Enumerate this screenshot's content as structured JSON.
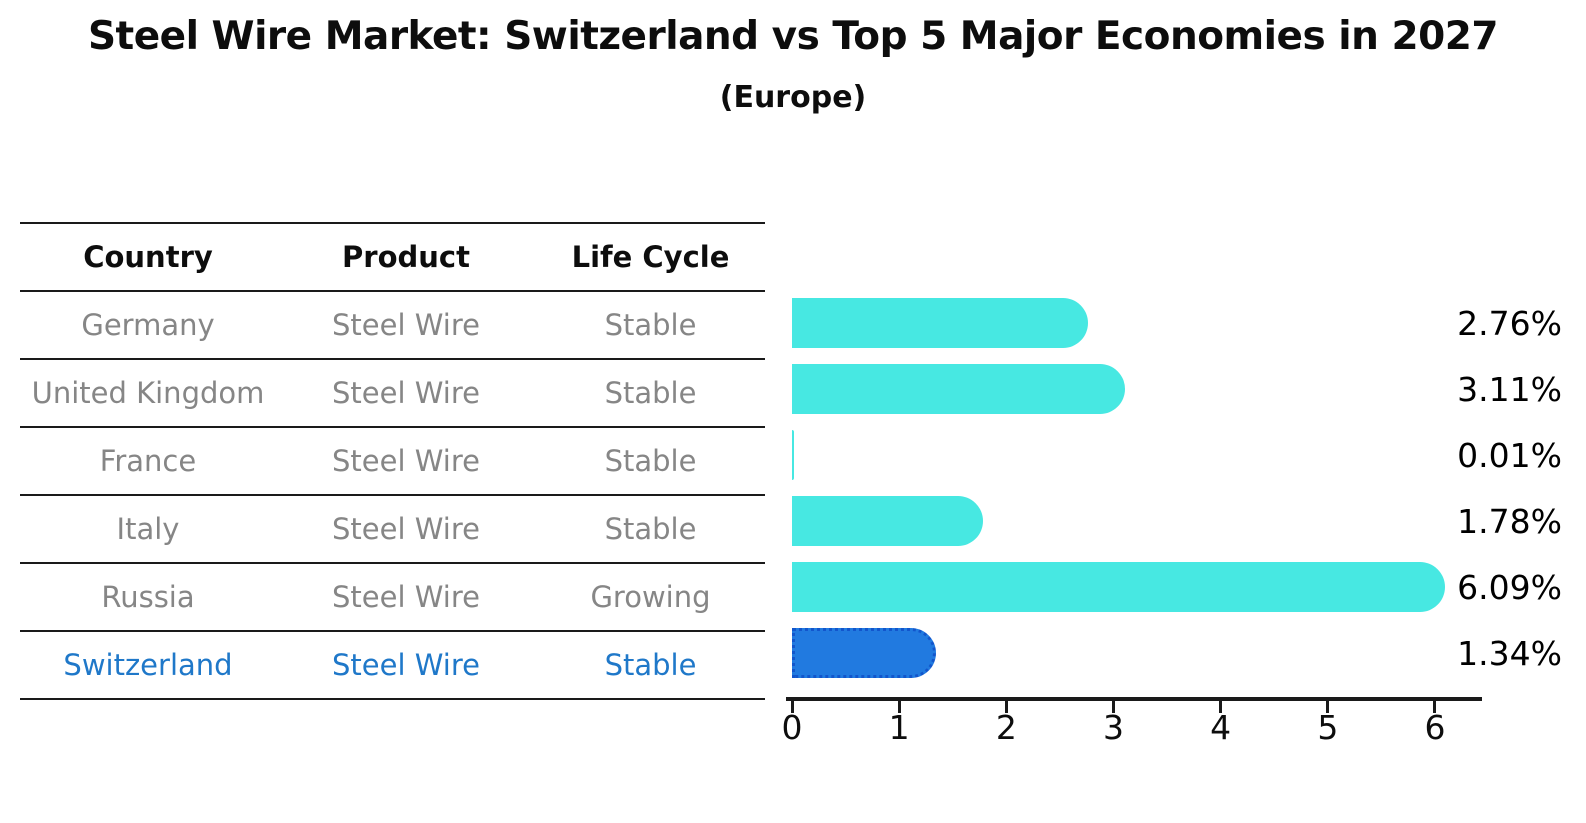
{
  "title": "Steel Wire Market: Switzerland vs Top 5 Major Economies in 2027",
  "subtitle": "(Europe)",
  "table": {
    "headers": [
      "Country",
      "Product",
      "Life Cycle"
    ],
    "rows": [
      {
        "country": "Germany",
        "product": "Steel Wire",
        "life_cycle": "Stable",
        "highlighted": false
      },
      {
        "country": "United Kingdom",
        "product": "Steel Wire",
        "life_cycle": "Stable",
        "highlighted": false
      },
      {
        "country": "France",
        "product": "Steel Wire",
        "life_cycle": "Stable",
        "highlighted": false
      },
      {
        "country": "Italy",
        "product": "Steel Wire",
        "life_cycle": "Stable",
        "highlighted": false
      },
      {
        "country": "Russia",
        "product": "Steel Wire",
        "life_cycle": "Growing",
        "highlighted": false
      },
      {
        "country": "Switzerland",
        "product": "Steel Wire",
        "life_cycle": "Stable",
        "highlighted": true
      }
    ]
  },
  "chart_data": {
    "type": "bar",
    "orientation": "horizontal",
    "title": "Steel Wire Market: Switzerland vs Top 5 Major Economies in 2027",
    "subtitle": "(Europe)",
    "categories": [
      "Germany",
      "United Kingdom",
      "France",
      "Italy",
      "Russia",
      "Switzerland"
    ],
    "values": [
      2.76,
      3.11,
      0.01,
      1.78,
      6.09,
      1.34
    ],
    "value_labels": [
      "2.76%",
      "3.11%",
      "0.01%",
      "1.78%",
      "6.09%",
      "1.34%"
    ],
    "x_ticks": [
      "0",
      "1",
      "2",
      "3",
      "4",
      "5",
      "6"
    ],
    "xlim": [
      0,
      6.42
    ],
    "grid": false,
    "legend": false,
    "highlight_index": 5
  },
  "colors": {
    "bar": "#47e8e2",
    "highlight_bar": "#217ae0",
    "highlight_border": "#1256cc",
    "highlight_text": "#1f78c9",
    "table_text": "#868686",
    "header_text": "#0d0d0d",
    "value_text": "#000000",
    "line": "#1a1a1a"
  }
}
